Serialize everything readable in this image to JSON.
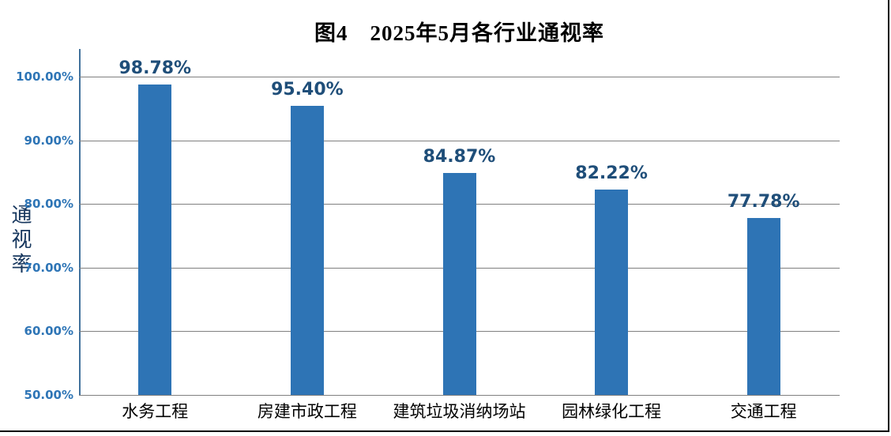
{
  "chart_data": {
    "type": "bar",
    "title": "图4　2025年5月各行业通视率",
    "ylabel": "通视率",
    "xlabel": "",
    "categories": [
      "水务工程",
      "房建市政工程",
      "建筑垃圾消纳场站",
      "园林绿化工程",
      "交通工程"
    ],
    "values": [
      98.78,
      95.4,
      84.87,
      82.22,
      77.78
    ],
    "value_labels": [
      "98.78%",
      "95.40%",
      "84.87%",
      "82.22%",
      "77.78%"
    ],
    "ylim": [
      50,
      100
    ],
    "ytick_values": [
      50,
      60,
      70,
      80,
      90,
      100
    ],
    "ytick_labels": [
      "50.00%",
      "60.00%",
      "70.00%",
      "80.00%",
      "90.00%",
      "100.00%"
    ],
    "grid": true,
    "legend": "none",
    "colors": {
      "bar": "#2E74B5",
      "value_label": "#1F4E79",
      "tick_label": "#2E75B6",
      "gridline": "#808080",
      "axis_line": "#41719C",
      "title": "#000000",
      "category_label": "#000000",
      "background": "#FFFFFF",
      "frame_border": "#000000"
    }
  }
}
